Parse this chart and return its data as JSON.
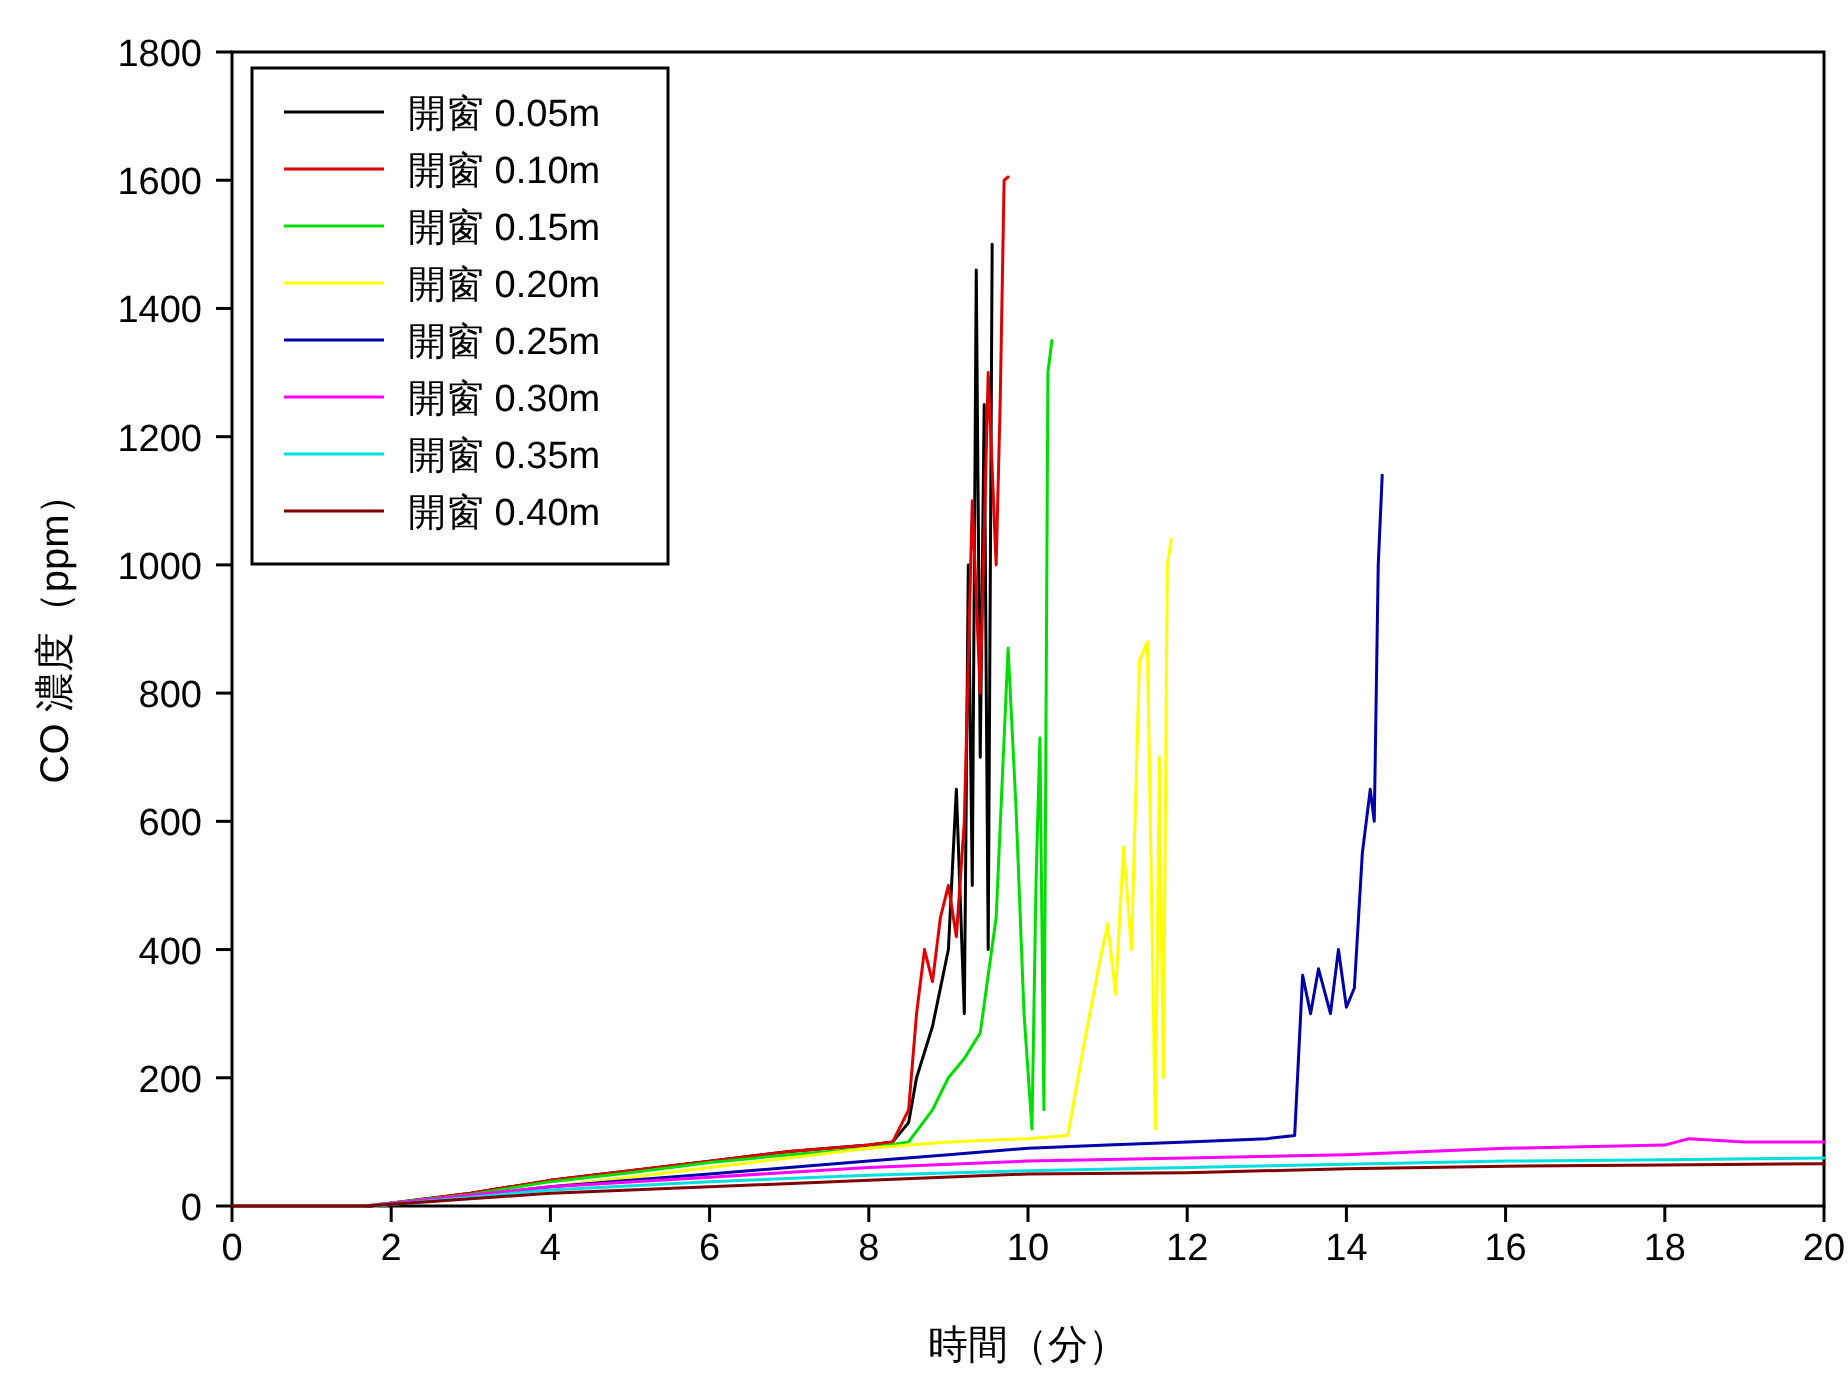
{
  "chart_data": {
    "type": "line",
    "xlabel": "時間（分）",
    "ylabel": "CO 濃度（ppm）",
    "xlim": [
      0,
      20
    ],
    "ylim": [
      0,
      1800
    ],
    "xticks": [
      0,
      2,
      4,
      6,
      8,
      10,
      12,
      14,
      16,
      18,
      20
    ],
    "yticks": [
      0,
      200,
      400,
      600,
      800,
      1000,
      1200,
      1400,
      1600,
      1800
    ],
    "grid": false,
    "legend": "top left",
    "marker": "none",
    "line_style": "solid",
    "series": [
      {
        "name": "開窗 0.05m",
        "color": "#000000",
        "x": [
          1.7,
          3,
          4,
          5,
          6,
          7,
          8,
          8.3,
          8.5,
          8.6,
          8.8,
          9.0,
          9.1,
          9.2,
          9.25,
          9.3,
          9.35,
          9.4,
          9.45,
          9.5,
          9.55
        ],
        "values": [
          0,
          20,
          40,
          55,
          70,
          85,
          95,
          100,
          130,
          200,
          280,
          400,
          650,
          300,
          1000,
          500,
          1460,
          700,
          1250,
          400,
          1500
        ]
      },
      {
        "name": "開窗 0.10m",
        "color": "#e00000",
        "x": [
          1.75,
          3,
          4,
          5,
          6,
          7,
          8,
          8.3,
          8.5,
          8.6,
          8.7,
          8.8,
          8.9,
          9.0,
          9.1,
          9.2,
          9.3,
          9.4,
          9.5,
          9.6,
          9.65,
          9.7,
          9.75
        ],
        "values": [
          0,
          20,
          40,
          55,
          70,
          85,
          95,
          100,
          150,
          300,
          400,
          350,
          450,
          500,
          420,
          600,
          1100,
          800,
          1300,
          1000,
          1250,
          1600,
          1605
        ]
      },
      {
        "name": "開窗 0.15m",
        "color": "#00dd00",
        "x": [
          1.65,
          3,
          4,
          5,
          6,
          7,
          8,
          8.5,
          8.8,
          9.0,
          9.2,
          9.4,
          9.6,
          9.75,
          9.85,
          9.95,
          10.05,
          10.1,
          10.15,
          10.2,
          10.25,
          10.3
        ],
        "values": [
          0,
          18,
          38,
          52,
          68,
          80,
          90,
          100,
          150,
          200,
          230,
          270,
          450,
          870,
          620,
          300,
          120,
          500,
          730,
          150,
          1300,
          1350
        ]
      },
      {
        "name": "開窗 0.20m",
        "color": "#ffff00",
        "x": [
          1.8,
          3,
          4,
          5,
          6,
          7,
          8,
          9,
          10,
          10.5,
          10.7,
          10.9,
          11.0,
          11.1,
          11.2,
          11.3,
          11.4,
          11.5,
          11.55,
          11.6,
          11.65,
          11.7,
          11.75,
          11.8
        ],
        "values": [
          0,
          15,
          30,
          45,
          60,
          75,
          90,
          100,
          105,
          110,
          250,
          380,
          440,
          330,
          560,
          400,
          850,
          880,
          500,
          120,
          700,
          200,
          1000,
          1040
        ]
      },
      {
        "name": "開窗 0.25m",
        "color": "#0000aa",
        "x": [
          1.72,
          3,
          4,
          5,
          6,
          7,
          8,
          9,
          10,
          11,
          12,
          13,
          13.35,
          13.45,
          13.55,
          13.65,
          13.8,
          13.9,
          14.0,
          14.1,
          14.2,
          14.3,
          14.35,
          14.4,
          14.45
        ],
        "values": [
          0,
          15,
          30,
          40,
          50,
          60,
          70,
          80,
          90,
          95,
          100,
          105,
          110,
          360,
          300,
          370,
          300,
          400,
          310,
          340,
          550,
          650,
          600,
          1000,
          1140
        ]
      },
      {
        "name": "開窗 0.30m",
        "color": "#ff00ff",
        "x": [
          1.68,
          4,
          6,
          8,
          10,
          12,
          14,
          16,
          18,
          18.3,
          19,
          20
        ],
        "values": [
          0,
          30,
          45,
          60,
          70,
          75,
          80,
          90,
          95,
          105,
          100,
          100
        ]
      },
      {
        "name": "開窗 0.35m",
        "color": "#00e0e0",
        "x": [
          1.78,
          4,
          6,
          8,
          10,
          12,
          14,
          16,
          18,
          20
        ],
        "values": [
          0,
          25,
          38,
          48,
          55,
          60,
          65,
          70,
          72,
          75
        ]
      },
      {
        "name": "開窗 0.40m",
        "color": "#800000",
        "x": [
          0,
          1.7,
          4,
          6,
          8,
          10,
          12,
          14,
          16,
          18,
          20
        ],
        "values": [
          0,
          0,
          20,
          30,
          40,
          50,
          52,
          58,
          62,
          64,
          66
        ]
      }
    ]
  }
}
